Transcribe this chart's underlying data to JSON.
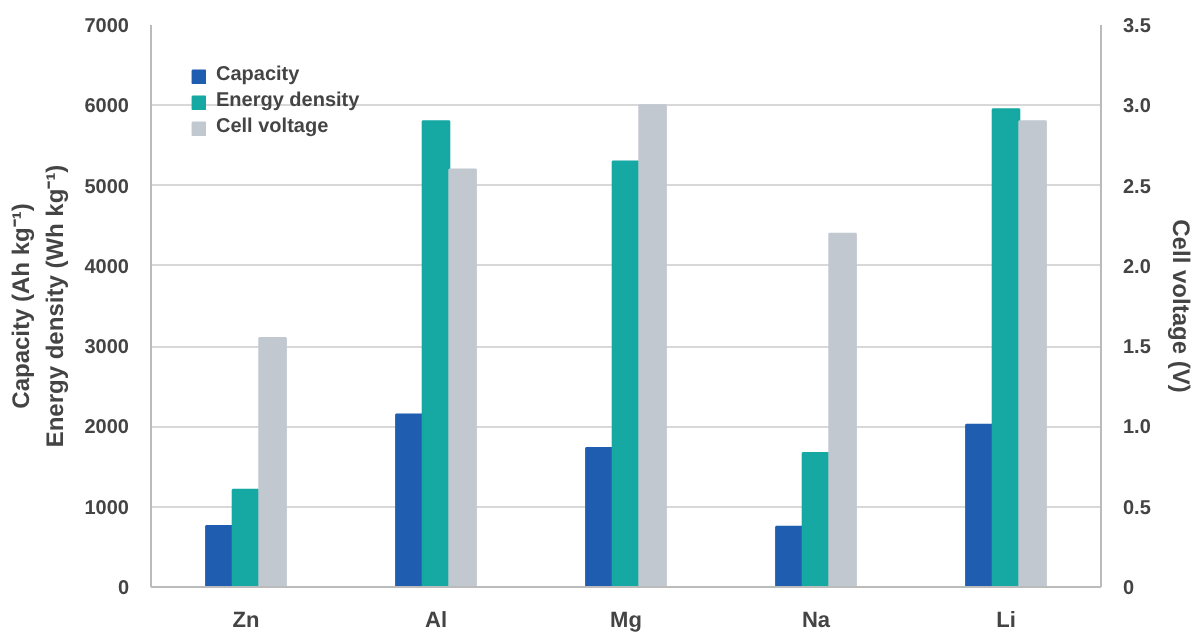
{
  "chart_data": {
    "type": "bar",
    "categories": [
      "Zn",
      "Al",
      "Mg",
      "Na",
      "Li"
    ],
    "ylabel": "Capacity (Ah kg⁻¹)\nEnergy density (Wh kg⁻¹)",
    "y2label": "Cell voltage (V)",
    "series": [
      {
        "name": "Capacity",
        "color": "#1f5db0",
        "values": [
          760,
          2150,
          1730,
          750,
          2020
        ]
      },
      {
        "name": "Energy density",
        "color": "#16a8a2",
        "values": [
          1210,
          5800,
          5300,
          1670,
          5950
        ]
      },
      {
        "name": "Cell voltage",
        "color": "#c2c8d0",
        "values": [
          1.55,
          2.6,
          3.0,
          2.2,
          2.9
        ],
        "axis": "y2"
      }
    ],
    "ylim": [
      0,
      7000
    ],
    "yticks": [
      0,
      1000,
      2000,
      3000,
      4000,
      5000,
      6000,
      7000
    ],
    "y2lim": [
      0,
      3.5
    ],
    "y2ticks": [
      0,
      {
        "value": 0.5,
        "label": "0.5"
      },
      {
        "value": 1,
        "label": "1.0"
      },
      {
        "value": 1.5,
        "label": "1.5"
      },
      {
        "value": 2,
        "label": "2.0"
      },
      {
        "value": 2.5,
        "label": "2.5"
      },
      {
        "value": 3,
        "label": "3.0"
      },
      {
        "value": 3.5,
        "label": "3.5"
      }
    ],
    "grid": "y",
    "legend": "top left"
  }
}
